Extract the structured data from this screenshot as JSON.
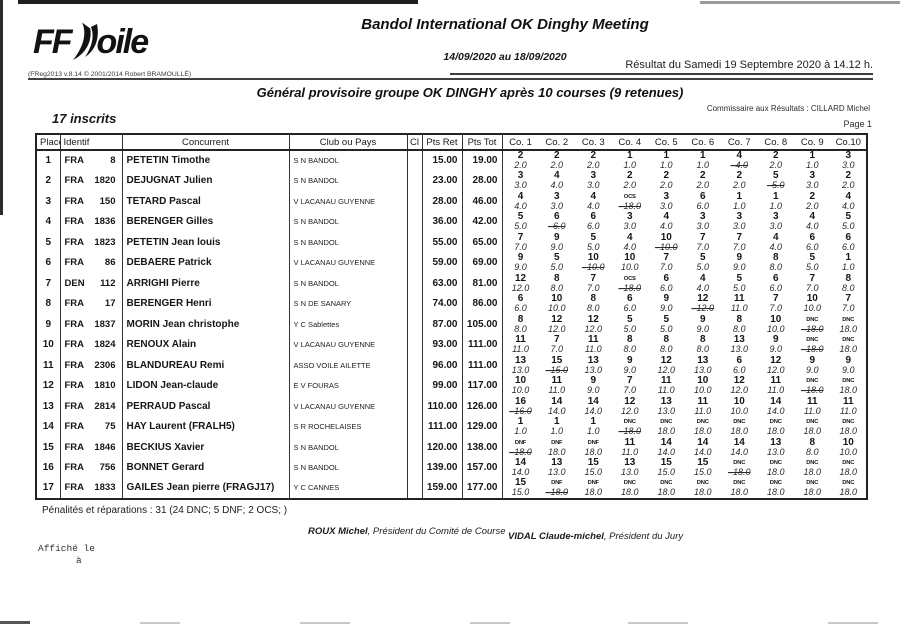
{
  "page": {
    "logo": {
      "ff": "FF",
      "oile": "oile"
    },
    "version_line": "(FReg2013 v.8.14 © 2001/2014 Robert BRAMOULLÉ)",
    "title": "Bandol International OK Dinghy Meeting",
    "date_range": "14/09/2020 au 18/09/2020",
    "result_line": "Résultat du Samedi 19 Septembre 2020 à 14.12 h.",
    "subtitle": "Général provisoire groupe OK DINGHY après 10 courses (9 retenues)",
    "commissaire": "Commissaire aux Résultats : CILLARD Michel",
    "inscrits": "17 inscrits",
    "page_label": "Page 1"
  },
  "table": {
    "columns": [
      "Place",
      "Identif",
      "Concurrent",
      "Club ou Pays",
      "Cl",
      "Pts Ret",
      "Pts Tot"
    ],
    "race_columns": [
      "Co. 1",
      "Co. 2",
      "Co. 3",
      "Co. 4",
      "Co. 5",
      "Co. 6",
      "Co. 7",
      "Co. 8",
      "Co. 9",
      "Co.10"
    ],
    "rows": [
      {
        "place": "1",
        "nat": "FRA",
        "sail": "8",
        "name": "PETETIN Timothe",
        "club": "S N BANDOL",
        "cl": "",
        "pts_ret": "15.00",
        "pts_tot": "19.00",
        "races": [
          "2",
          "2",
          "2",
          "1",
          "1",
          "1",
          "4",
          "2",
          "1",
          "3"
        ],
        "points": [
          "2.0",
          "2.0",
          "2.0",
          "1.0",
          "1.0",
          "1.0",
          "4.0",
          "2.0",
          "1.0",
          "3.0"
        ],
        "discard": 6
      },
      {
        "place": "2",
        "nat": "FRA",
        "sail": "1820",
        "name": "DEJUGNAT Julien",
        "club": "S N BANDOL",
        "cl": "",
        "pts_ret": "23.00",
        "pts_tot": "28.00",
        "races": [
          "3",
          "4",
          "3",
          "2",
          "2",
          "2",
          "2",
          "5",
          "3",
          "2"
        ],
        "points": [
          "3.0",
          "4.0",
          "3.0",
          "2.0",
          "2.0",
          "2.0",
          "2.0",
          "5.0",
          "3.0",
          "2.0"
        ],
        "discard": 7
      },
      {
        "place": "3",
        "nat": "FRA",
        "sail": "150",
        "name": "TETARD Pascal",
        "club": "V LACANAU GUYENNE",
        "cl": "",
        "pts_ret": "28.00",
        "pts_tot": "46.00",
        "races": [
          "4",
          "3",
          "4",
          "OCS",
          "3",
          "6",
          "1",
          "1",
          "2",
          "4"
        ],
        "points": [
          "4.0",
          "3.0",
          "4.0",
          "18.0",
          "3.0",
          "6.0",
          "1.0",
          "1.0",
          "2.0",
          "4.0"
        ],
        "discard": 3
      },
      {
        "place": "4",
        "nat": "FRA",
        "sail": "1836",
        "name": "BERENGER Gilles",
        "club": "S N BANDOL",
        "cl": "",
        "pts_ret": "36.00",
        "pts_tot": "42.00",
        "races": [
          "5",
          "6",
          "6",
          "3",
          "4",
          "3",
          "3",
          "3",
          "4",
          "5"
        ],
        "points": [
          "5.0",
          "6.0",
          "6.0",
          "3.0",
          "4.0",
          "3.0",
          "3.0",
          "3.0",
          "4.0",
          "5.0"
        ],
        "discard": 1
      },
      {
        "place": "5",
        "nat": "FRA",
        "sail": "1823",
        "name": "PETETIN Jean louis",
        "club": "S N BANDOL",
        "cl": "",
        "pts_ret": "55.00",
        "pts_tot": "65.00",
        "races": [
          "7",
          "9",
          "5",
          "4",
          "10",
          "7",
          "7",
          "4",
          "6",
          "6"
        ],
        "points": [
          "7.0",
          "9.0",
          "5.0",
          "4.0",
          "10.0",
          "7.0",
          "7.0",
          "4.0",
          "6.0",
          "6.0"
        ],
        "discard": 4
      },
      {
        "place": "6",
        "nat": "FRA",
        "sail": "86",
        "name": "DEBAERE Patrick",
        "club": "V LACANAU GUYENNE",
        "cl": "",
        "pts_ret": "59.00",
        "pts_tot": "69.00",
        "races": [
          "9",
          "5",
          "10",
          "10",
          "7",
          "5",
          "9",
          "8",
          "5",
          "1"
        ],
        "points": [
          "9.0",
          "5.0",
          "10.0",
          "10.0",
          "7.0",
          "5.0",
          "9.0",
          "8.0",
          "5.0",
          "1.0"
        ],
        "discard": 2
      },
      {
        "place": "7",
        "nat": "DEN",
        "sail": "112",
        "name": "ARRIGHI Pierre",
        "club": "S N BANDOL",
        "cl": "",
        "pts_ret": "63.00",
        "pts_tot": "81.00",
        "races": [
          "12",
          "8",
          "7",
          "OCS",
          "6",
          "4",
          "5",
          "6",
          "7",
          "8"
        ],
        "points": [
          "12.0",
          "8.0",
          "7.0",
          "18.0",
          "6.0",
          "4.0",
          "5.0",
          "6.0",
          "7.0",
          "8.0"
        ],
        "discard": 3
      },
      {
        "place": "8",
        "nat": "FRA",
        "sail": "17",
        "name": "BERENGER Henri",
        "club": "S N DE SANARY",
        "cl": "",
        "pts_ret": "74.00",
        "pts_tot": "86.00",
        "races": [
          "6",
          "10",
          "8",
          "6",
          "9",
          "12",
          "11",
          "7",
          "10",
          "7"
        ],
        "points": [
          "6.0",
          "10.0",
          "8.0",
          "6.0",
          "9.0",
          "12.0",
          "11.0",
          "7.0",
          "10.0",
          "7.0"
        ],
        "discard": 5
      },
      {
        "place": "9",
        "nat": "FRA",
        "sail": "1837",
        "name": "MORIN Jean christophe",
        "club": "Y C Sablettes",
        "cl": "",
        "pts_ret": "87.00",
        "pts_tot": "105.00",
        "races": [
          "8",
          "12",
          "12",
          "5",
          "5",
          "9",
          "8",
          "10",
          "DNC",
          "DNC"
        ],
        "points": [
          "8.0",
          "12.0",
          "12.0",
          "5.0",
          "5.0",
          "9.0",
          "8.0",
          "10.0",
          "18.0",
          "18.0"
        ],
        "discard": 8
      },
      {
        "place": "10",
        "nat": "FRA",
        "sail": "1824",
        "name": "RENOUX Alain",
        "club": "V LACANAU GUYENNE",
        "cl": "",
        "pts_ret": "93.00",
        "pts_tot": "111.00",
        "races": [
          "11",
          "7",
          "11",
          "8",
          "8",
          "8",
          "13",
          "9",
          "DNC",
          "DNC"
        ],
        "points": [
          "11.0",
          "7.0",
          "11.0",
          "8.0",
          "8.0",
          "8.0",
          "13.0",
          "9.0",
          "18.0",
          "18.0"
        ],
        "discard": 8
      },
      {
        "place": "11",
        "nat": "FRA",
        "sail": "2306",
        "name": "BLANDUREAU Remi",
        "club": "ASSO VOILE AILETTE",
        "cl": "",
        "pts_ret": "96.00",
        "pts_tot": "111.00",
        "races": [
          "13",
          "15",
          "13",
          "9",
          "12",
          "13",
          "6",
          "12",
          "9",
          "9"
        ],
        "points": [
          "13.0",
          "15.0",
          "13.0",
          "9.0",
          "12.0",
          "13.0",
          "6.0",
          "12.0",
          "9.0",
          "9.0"
        ],
        "discard": 1
      },
      {
        "place": "12",
        "nat": "FRA",
        "sail": "1810",
        "name": "LIDON Jean-claude",
        "club": "E V FOURAS",
        "cl": "",
        "pts_ret": "99.00",
        "pts_tot": "117.00",
        "races": [
          "10",
          "11",
          "9",
          "7",
          "11",
          "10",
          "12",
          "11",
          "DNC",
          "DNC"
        ],
        "points": [
          "10.0",
          "11.0",
          "9.0",
          "7.0",
          "11.0",
          "10.0",
          "12.0",
          "11.0",
          "18.0",
          "18.0"
        ],
        "discard": 8
      },
      {
        "place": "13",
        "nat": "FRA",
        "sail": "2814",
        "name": "PERRAUD Pascal",
        "club": "V LACANAU GUYENNE",
        "cl": "",
        "pts_ret": "110.00",
        "pts_tot": "126.00",
        "races": [
          "16",
          "14",
          "14",
          "12",
          "13",
          "11",
          "10",
          "14",
          "11",
          "11"
        ],
        "points": [
          "16.0",
          "14.0",
          "14.0",
          "12.0",
          "13.0",
          "11.0",
          "10.0",
          "14.0",
          "11.0",
          "11.0"
        ],
        "discard": 0
      },
      {
        "place": "14",
        "nat": "FRA",
        "sail": "75",
        "name": "HAY Laurent (FRALH5)",
        "club": "S R ROCHELAISES",
        "cl": "",
        "pts_ret": "111.00",
        "pts_tot": "129.00",
        "races": [
          "1",
          "1",
          "1",
          "DNC",
          "DNC",
          "DNC",
          "DNC",
          "DNC",
          "DNC",
          "DNC"
        ],
        "points": [
          "1.0",
          "1.0",
          "1.0",
          "18.0",
          "18.0",
          "18.0",
          "18.0",
          "18.0",
          "18.0",
          "18.0"
        ],
        "discard": 3
      },
      {
        "place": "15",
        "nat": "FRA",
        "sail": "1846",
        "name": "BECKIUS Xavier",
        "club": "S N BANDOL",
        "cl": "",
        "pts_ret": "120.00",
        "pts_tot": "138.00",
        "races": [
          "DNF",
          "DNF",
          "DNF",
          "11",
          "14",
          "14",
          "14",
          "13",
          "8",
          "10"
        ],
        "points": [
          "18.0",
          "18.0",
          "18.0",
          "11.0",
          "14.0",
          "14.0",
          "14.0",
          "13.0",
          "8.0",
          "10.0"
        ],
        "discard": 0
      },
      {
        "place": "16",
        "nat": "FRA",
        "sail": "756",
        "name": "BONNET Gerard",
        "club": "S N BANDOL",
        "cl": "",
        "pts_ret": "139.00",
        "pts_tot": "157.00",
        "races": [
          "14",
          "13",
          "15",
          "13",
          "15",
          "15",
          "DNC",
          "DNC",
          "DNC",
          "DNC"
        ],
        "points": [
          "14.0",
          "13.0",
          "15.0",
          "13.0",
          "15.0",
          "15.0",
          "18.0",
          "18.0",
          "18.0",
          "18.0"
        ],
        "discard": 6
      },
      {
        "place": "17",
        "nat": "FRA",
        "sail": "1833",
        "name": "GAILES Jean pierre (FRAGJ17)",
        "club": "Y C CANNES",
        "cl": "",
        "pts_ret": "159.00",
        "pts_tot": "177.00",
        "races": [
          "15",
          "DNF",
          "DNF",
          "DNC",
          "DNC",
          "DNC",
          "DNC",
          "DNC",
          "DNC",
          "DNC"
        ],
        "points": [
          "15.0",
          "18.0",
          "18.0",
          "18.0",
          "18.0",
          "18.0",
          "18.0",
          "18.0",
          "18.0",
          "18.0"
        ],
        "discard": 1
      }
    ]
  },
  "footer": {
    "penalties": "Pénalités et réparations : 31 (24 DNC; 5 DNF; 2 OCS; )",
    "sig1_name": "ROUX Michel",
    "sig1_role": ", Président du Comité de Course",
    "sig2_name": "VIDAL Claude-michel",
    "sig2_role": ", Président du Jury",
    "affiche_line1": "Affiché le",
    "affiche_line2": "à"
  }
}
